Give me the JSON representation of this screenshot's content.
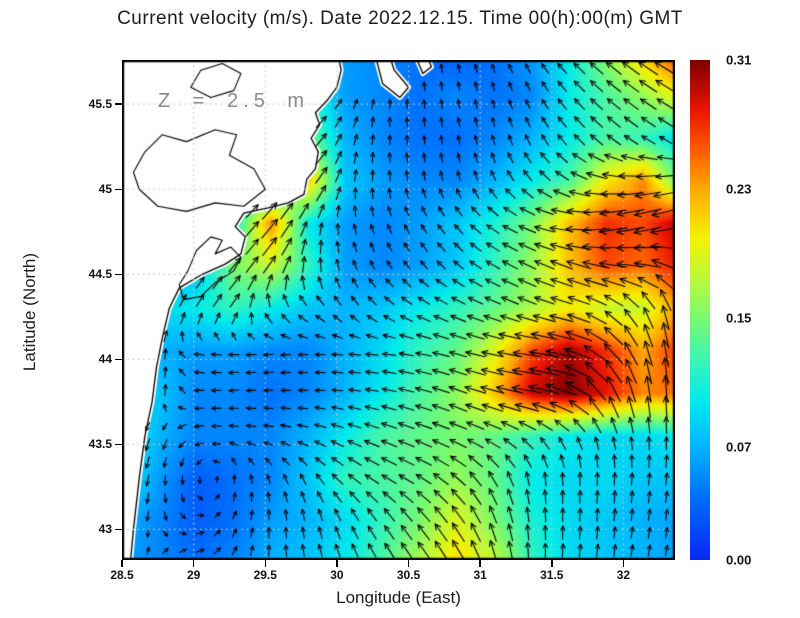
{
  "figure": {
    "title": "Current velocity (m/s). Date 2022.12.15. Time 00(h):00(m) GMT",
    "z_annotation": "Z = 2.5 m",
    "xlabel": "Longitude (East)",
    "ylabel": "Latitude (North)"
  },
  "style": {
    "grid_color": "#c8c8c8",
    "coast_color": "#000000",
    "arrow_color": "#000000",
    "border_color": "#000000",
    "annotation_color": "#8a8a8a"
  },
  "chart_data": {
    "type": "heatmap",
    "subtype": "vector-field-over-speed-heatmap",
    "title": "Current velocity (m/s). Date 2022.12.15. Time 00(h):00(m) GMT",
    "xlabel": "Longitude (East)",
    "ylabel": "Latitude (North)",
    "depth_annotation": "Z = 2.5 m",
    "lon_range": [
      28.5,
      32.36
    ],
    "lat_range": [
      42.82,
      45.76
    ],
    "x_ticks": [
      28.5,
      29,
      29.5,
      30,
      30.5,
      31,
      31.5,
      32
    ],
    "x_tick_labels": [
      "28.5",
      "29",
      "29.5",
      "30",
      "30.5",
      "31",
      "31.5",
      "32"
    ],
    "y_ticks": [
      43,
      43.5,
      44,
      44.5,
      45,
      45.5
    ],
    "y_tick_labels": [
      "43",
      "43.5",
      "44",
      "44.5",
      "45",
      "45.5"
    ],
    "grid_on": true,
    "legend": "colorbar-right",
    "colorbar": {
      "vmin": 0.0,
      "vmax": 0.31,
      "tick_values": [
        0.31,
        0.23,
        0.15,
        0.07,
        0.0
      ],
      "tick_labels": [
        "0.31",
        "0.23",
        "0.15",
        "0.07",
        "0.00"
      ]
    },
    "colormap": [
      {
        "t": 0.0,
        "c": "#0a28f5"
      },
      {
        "t": 0.125,
        "c": "#006eff"
      },
      {
        "t": 0.226,
        "c": "#00b4ff"
      },
      {
        "t": 0.32,
        "c": "#00ebeb"
      },
      {
        "t": 0.4,
        "c": "#3cf5b4"
      },
      {
        "t": 0.484,
        "c": "#78fa6e"
      },
      {
        "t": 0.56,
        "c": "#b9fa3c"
      },
      {
        "t": 0.645,
        "c": "#f5f000"
      },
      {
        "t": 0.742,
        "c": "#ffaa00"
      },
      {
        "t": 0.82,
        "c": "#ff5a00"
      },
      {
        "t": 0.9,
        "c": "#eb1400"
      },
      {
        "t": 1.0,
        "c": "#7d0000"
      }
    ],
    "grid_lons": [
      28.5,
      28.76,
      29.02,
      29.28,
      29.54,
      29.8,
      30.06,
      30.32,
      30.58,
      30.84,
      31.1,
      31.36,
      31.62,
      31.88,
      32.14,
      32.4
    ],
    "grid_lats": [
      42.8,
      43.05,
      43.3,
      43.55,
      43.8,
      44.05,
      44.3,
      44.55,
      44.8,
      45.05,
      45.3,
      45.55,
      45.8
    ],
    "speed_grid": [
      [
        0.06,
        0.05,
        0.04,
        0.05,
        0.07,
        0.08,
        0.1,
        0.13,
        0.17,
        0.21,
        0.18,
        0.12,
        0.09,
        0.08,
        0.07,
        0.06
      ],
      [
        0.07,
        0.05,
        0.03,
        0.04,
        0.06,
        0.07,
        0.09,
        0.12,
        0.15,
        0.19,
        0.15,
        0.11,
        0.09,
        0.08,
        0.07,
        0.06
      ],
      [
        0.1,
        0.06,
        0.03,
        0.04,
        0.05,
        0.08,
        0.12,
        0.13,
        0.14,
        0.16,
        0.14,
        0.1,
        0.09,
        0.09,
        0.08,
        0.08
      ],
      [
        0.12,
        0.07,
        0.05,
        0.05,
        0.05,
        0.07,
        0.1,
        0.13,
        0.14,
        0.15,
        0.14,
        0.12,
        0.1,
        0.09,
        0.09,
        0.1
      ],
      [
        0.1,
        0.08,
        0.05,
        0.05,
        0.04,
        0.05,
        0.07,
        0.1,
        0.13,
        0.16,
        0.22,
        0.29,
        0.31,
        0.28,
        0.24,
        0.25
      ],
      [
        0.08,
        0.07,
        0.06,
        0.06,
        0.05,
        0.05,
        0.07,
        0.09,
        0.12,
        0.14,
        0.19,
        0.26,
        0.3,
        0.27,
        0.23,
        0.27
      ],
      [
        0.07,
        0.09,
        0.1,
        0.12,
        0.1,
        0.08,
        0.07,
        0.08,
        0.1,
        0.12,
        0.14,
        0.17,
        0.2,
        0.18,
        0.18,
        0.24
      ],
      [
        0.05,
        0.05,
        0.08,
        0.15,
        0.18,
        0.12,
        0.06,
        0.05,
        0.06,
        0.08,
        0.12,
        0.16,
        0.22,
        0.26,
        0.25,
        0.28
      ],
      [
        0.05,
        0.05,
        0.06,
        0.1,
        0.24,
        0.1,
        0.06,
        0.05,
        0.06,
        0.08,
        0.11,
        0.15,
        0.22,
        0.27,
        0.26,
        0.3
      ],
      [
        0.05,
        0.05,
        0.05,
        0.06,
        0.08,
        0.22,
        0.08,
        0.06,
        0.05,
        0.05,
        0.07,
        0.1,
        0.13,
        0.2,
        0.24,
        0.13
      ],
      [
        0.05,
        0.05,
        0.05,
        0.05,
        0.06,
        0.15,
        0.07,
        0.05,
        0.04,
        0.04,
        0.05,
        0.07,
        0.1,
        0.13,
        0.12,
        0.09
      ],
      [
        0.05,
        0.05,
        0.05,
        0.05,
        0.06,
        0.12,
        0.06,
        0.05,
        0.04,
        0.05,
        0.04,
        0.05,
        0.1,
        0.13,
        0.16,
        0.2
      ],
      [
        0.05,
        0.05,
        0.05,
        0.05,
        0.05,
        0.08,
        0.06,
        0.05,
        0.04,
        0.03,
        0.04,
        0.06,
        0.1,
        0.16,
        0.22,
        0.28
      ]
    ],
    "dir_deg_grid": [
      [
        90,
        70,
        20,
        60,
        90,
        100,
        110,
        120,
        125,
        120,
        105,
        90,
        85,
        82,
        80,
        80
      ],
      [
        230,
        280,
        0,
        60,
        90,
        100,
        115,
        125,
        130,
        125,
        110,
        95,
        88,
        85,
        82,
        80
      ],
      [
        240,
        270,
        270,
        90,
        110,
        120,
        140,
        150,
        150,
        140,
        120,
        100,
        90,
        88,
        85,
        82
      ],
      [
        250,
        250,
        190,
        170,
        170,
        165,
        160,
        160,
        160,
        158,
        155,
        140,
        120,
        105,
        95,
        88
      ],
      [
        85,
        80,
        180,
        185,
        180,
        180,
        175,
        170,
        165,
        160,
        165,
        170,
        160,
        120,
        100,
        90
      ],
      [
        80,
        75,
        170,
        180,
        185,
        180,
        175,
        175,
        170,
        165,
        168,
        172,
        168,
        140,
        110,
        95
      ],
      [
        70,
        65,
        60,
        55,
        120,
        140,
        130,
        140,
        150,
        155,
        158,
        160,
        165,
        150,
        120,
        100
      ],
      [
        60,
        55,
        50,
        50,
        55,
        90,
        110,
        120,
        130,
        140,
        150,
        155,
        160,
        170,
        175,
        150
      ],
      [
        50,
        50,
        45,
        45,
        50,
        70,
        100,
        110,
        120,
        130,
        145,
        160,
        175,
        190,
        195,
        195
      ],
      [
        45,
        45,
        40,
        40,
        40,
        50,
        80,
        95,
        100,
        105,
        115,
        130,
        150,
        170,
        185,
        190
      ],
      [
        45,
        45,
        45,
        45,
        45,
        45,
        70,
        90,
        95,
        100,
        105,
        115,
        130,
        140,
        145,
        150
      ],
      [
        45,
        45,
        45,
        45,
        45,
        40,
        60,
        85,
        95,
        100,
        105,
        115,
        130,
        140,
        145,
        150
      ],
      [
        45,
        45,
        45,
        45,
        45,
        45,
        60,
        90,
        95,
        100,
        110,
        120,
        135,
        140,
        145,
        150
      ]
    ],
    "land_polygons": [
      [
        [
          28.5,
          42.82
        ],
        [
          28.56,
          42.82
        ],
        [
          28.58,
          43.0
        ],
        [
          28.62,
          43.3
        ],
        [
          28.66,
          43.55
        ],
        [
          28.71,
          43.75
        ],
        [
          28.74,
          43.95
        ],
        [
          28.78,
          44.12
        ],
        [
          28.83,
          44.3
        ],
        [
          28.9,
          44.42
        ],
        [
          29.06,
          44.5
        ],
        [
          29.22,
          44.56
        ],
        [
          29.33,
          44.62
        ],
        [
          29.36,
          44.72
        ],
        [
          29.29,
          44.78
        ],
        [
          29.35,
          44.86
        ],
        [
          29.52,
          44.89
        ],
        [
          29.66,
          44.92
        ],
        [
          29.77,
          44.97
        ],
        [
          29.79,
          45.06
        ],
        [
          29.85,
          45.12
        ],
        [
          29.87,
          45.22
        ],
        [
          29.82,
          45.3
        ],
        [
          29.88,
          45.38
        ],
        [
          29.85,
          45.45
        ],
        [
          29.93,
          45.52
        ],
        [
          30.0,
          45.6
        ],
        [
          30.03,
          45.7
        ],
        [
          30.01,
          45.78
        ],
        [
          28.48,
          45.78
        ]
      ],
      [
        [
          30.27,
          45.78
        ],
        [
          30.32,
          45.62
        ],
        [
          30.44,
          45.54
        ],
        [
          30.5,
          45.6
        ],
        [
          30.4,
          45.7
        ],
        [
          30.37,
          45.78
        ]
      ],
      [
        [
          30.55,
          45.78
        ],
        [
          30.6,
          45.68
        ],
        [
          30.66,
          45.72
        ],
        [
          30.63,
          45.78
        ]
      ]
    ],
    "lagoon_contours": [
      [
        [
          28.93,
          44.35
        ],
        [
          29.05,
          44.37
        ],
        [
          29.15,
          44.45
        ],
        [
          29.28,
          44.52
        ],
        [
          29.33,
          44.6
        ],
        [
          29.26,
          44.66
        ],
        [
          29.15,
          44.62
        ],
        [
          29.2,
          44.7
        ],
        [
          29.12,
          44.72
        ],
        [
          29.02,
          44.64
        ],
        [
          28.96,
          44.52
        ],
        [
          28.9,
          44.44
        ]
      ],
      [
        [
          28.62,
          45.0
        ],
        [
          28.75,
          44.9
        ],
        [
          28.95,
          44.87
        ],
        [
          29.15,
          44.92
        ],
        [
          29.35,
          44.9
        ],
        [
          29.5,
          45.0
        ],
        [
          29.42,
          45.12
        ],
        [
          29.25,
          45.2
        ],
        [
          29.3,
          45.32
        ],
        [
          29.15,
          45.35
        ],
        [
          28.95,
          45.28
        ],
        [
          28.78,
          45.32
        ],
        [
          28.66,
          45.22
        ],
        [
          28.58,
          45.1
        ]
      ],
      [
        [
          28.98,
          45.6
        ],
        [
          29.12,
          45.54
        ],
        [
          29.28,
          45.58
        ],
        [
          29.33,
          45.68
        ],
        [
          29.2,
          45.74
        ],
        [
          29.05,
          45.7
        ]
      ]
    ]
  }
}
